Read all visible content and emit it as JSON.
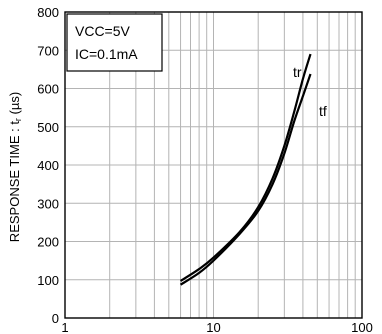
{
  "chart_data": {
    "type": "line",
    "x_scale": "log",
    "xlim": [
      1,
      100
    ],
    "ylim": [
      0,
      800
    ],
    "x_ticks": [
      "1",
      "10",
      "100"
    ],
    "y_ticks": [
      "0",
      "100",
      "200",
      "300",
      "400",
      "500",
      "600",
      "700",
      "800"
    ],
    "x_tick_values": [
      1,
      10,
      100
    ],
    "y_tick_values": [
      0,
      100,
      200,
      300,
      400,
      500,
      600,
      700,
      800
    ],
    "ylabel": "RESPONSE TIME : t",
    "ylabel_sub": "r",
    "ylabel_unit": " (µs)",
    "grid": true,
    "legend": {
      "line1": "VCC=5V",
      "line2": "IC=0.1mA"
    },
    "series": [
      {
        "name": "tr",
        "x": [
          6,
          8,
          10,
          15,
          20,
          25,
          30,
          35,
          40,
          45
        ],
        "y": [
          97,
          128,
          158,
          225,
          290,
          365,
          450,
          540,
          625,
          690
        ]
      },
      {
        "name": "tf",
        "x": [
          6,
          8,
          10,
          15,
          20,
          25,
          30,
          35,
          40,
          45
        ],
        "y": [
          87,
          118,
          150,
          220,
          280,
          350,
          430,
          515,
          580,
          638
        ]
      }
    ]
  }
}
